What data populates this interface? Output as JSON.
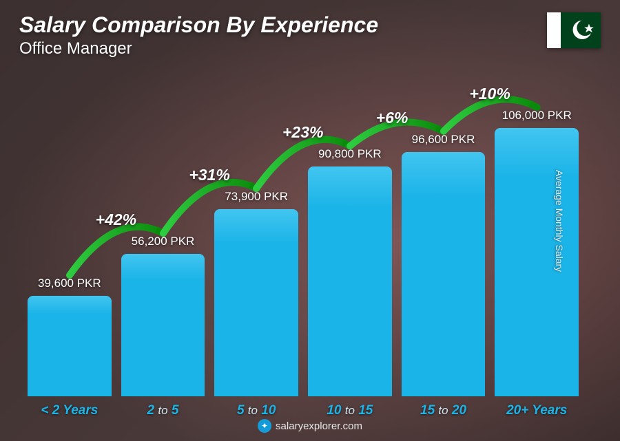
{
  "header": {
    "title": "Salary Comparison By Experience",
    "subtitle": "Office Manager"
  },
  "flag": {
    "white": "#ffffff",
    "green": "#01411c"
  },
  "chart": {
    "type": "bar",
    "bar_color": "#1bb4e8",
    "bar_top_color": "#42c5f0",
    "growth_color_start": "#2ecc40",
    "growth_color_end": "#0a8a0a",
    "value_color": "#ffffff",
    "category_color": "#1bb4e8",
    "category_mid_color": "#d0e8f0",
    "max_value": 106000,
    "area_height": 390,
    "currency": "PKR",
    "bars": [
      {
        "label_pre": "< 2",
        "label_mid": "",
        "label_post": "Years",
        "value": 39600,
        "display": "39,600 PKR"
      },
      {
        "label_pre": "2",
        "label_mid": "to",
        "label_post": "5",
        "value": 56200,
        "display": "56,200 PKR"
      },
      {
        "label_pre": "5",
        "label_mid": "to",
        "label_post": "10",
        "value": 73900,
        "display": "73,900 PKR"
      },
      {
        "label_pre": "10",
        "label_mid": "to",
        "label_post": "15",
        "value": 90800,
        "display": "90,800 PKR"
      },
      {
        "label_pre": "15",
        "label_mid": "to",
        "label_post": "20",
        "value": 96600,
        "display": "96,600 PKR"
      },
      {
        "label_pre": "20+",
        "label_mid": "",
        "label_post": "Years",
        "value": 106000,
        "display": "106,000 PKR"
      }
    ],
    "growths": [
      {
        "label": "+42%",
        "between": [
          0,
          1
        ]
      },
      {
        "label": "+31%",
        "between": [
          1,
          2
        ]
      },
      {
        "label": "+23%",
        "between": [
          2,
          3
        ]
      },
      {
        "label": "+6%",
        "between": [
          3,
          4
        ]
      },
      {
        "label": "+10%",
        "between": [
          4,
          5
        ]
      }
    ]
  },
  "side_label": "Average Monthly Salary",
  "footer": {
    "site": "salaryexplorer.com"
  }
}
